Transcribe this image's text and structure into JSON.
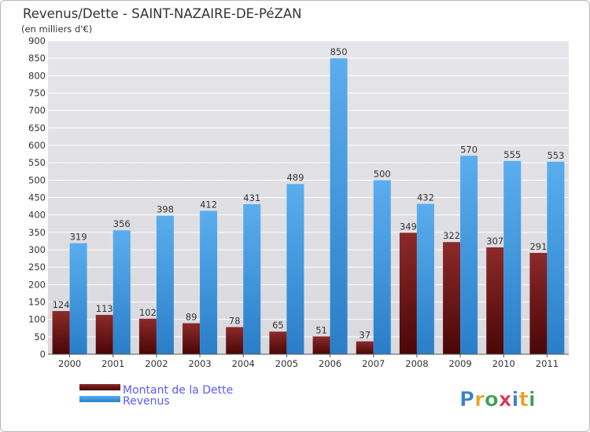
{
  "chart_data": {
    "type": "bar",
    "title": "Revenus/Dette - SAINT-NAZAIRE-DE-PéZAN",
    "subtitle": "(en milliers d'€)",
    "categories": [
      "2000",
      "2001",
      "2002",
      "2003",
      "2004",
      "2005",
      "2006",
      "2007",
      "2008",
      "2009",
      "2010",
      "2011"
    ],
    "series": [
      {
        "name": "Montant de la Dette",
        "color": "#7a1414",
        "values": [
          124,
          113,
          102,
          89,
          78,
          65,
          51,
          37,
          349,
          322,
          307,
          291
        ]
      },
      {
        "name": "Revenus",
        "color": "#4ea3e6",
        "values": [
          319,
          356,
          398,
          412,
          431,
          489,
          850,
          500,
          432,
          570,
          555,
          553
        ]
      }
    ],
    "ylim": [
      0,
      900
    ],
    "yticks": [
      0,
      50,
      100,
      150,
      200,
      250,
      300,
      350,
      400,
      450,
      500,
      550,
      600,
      650,
      700,
      750,
      800,
      850,
      900
    ],
    "grid": true,
    "legend_position": "bottom-left"
  },
  "logo": {
    "letters": [
      "P",
      "r",
      "o",
      "x",
      "i",
      "t",
      "i"
    ],
    "colors": [
      "#3a7fd0",
      "#e8a020",
      "#3aa050",
      "#e03050",
      "#3a7fd0",
      "#e8a020",
      "#3aa050"
    ]
  }
}
